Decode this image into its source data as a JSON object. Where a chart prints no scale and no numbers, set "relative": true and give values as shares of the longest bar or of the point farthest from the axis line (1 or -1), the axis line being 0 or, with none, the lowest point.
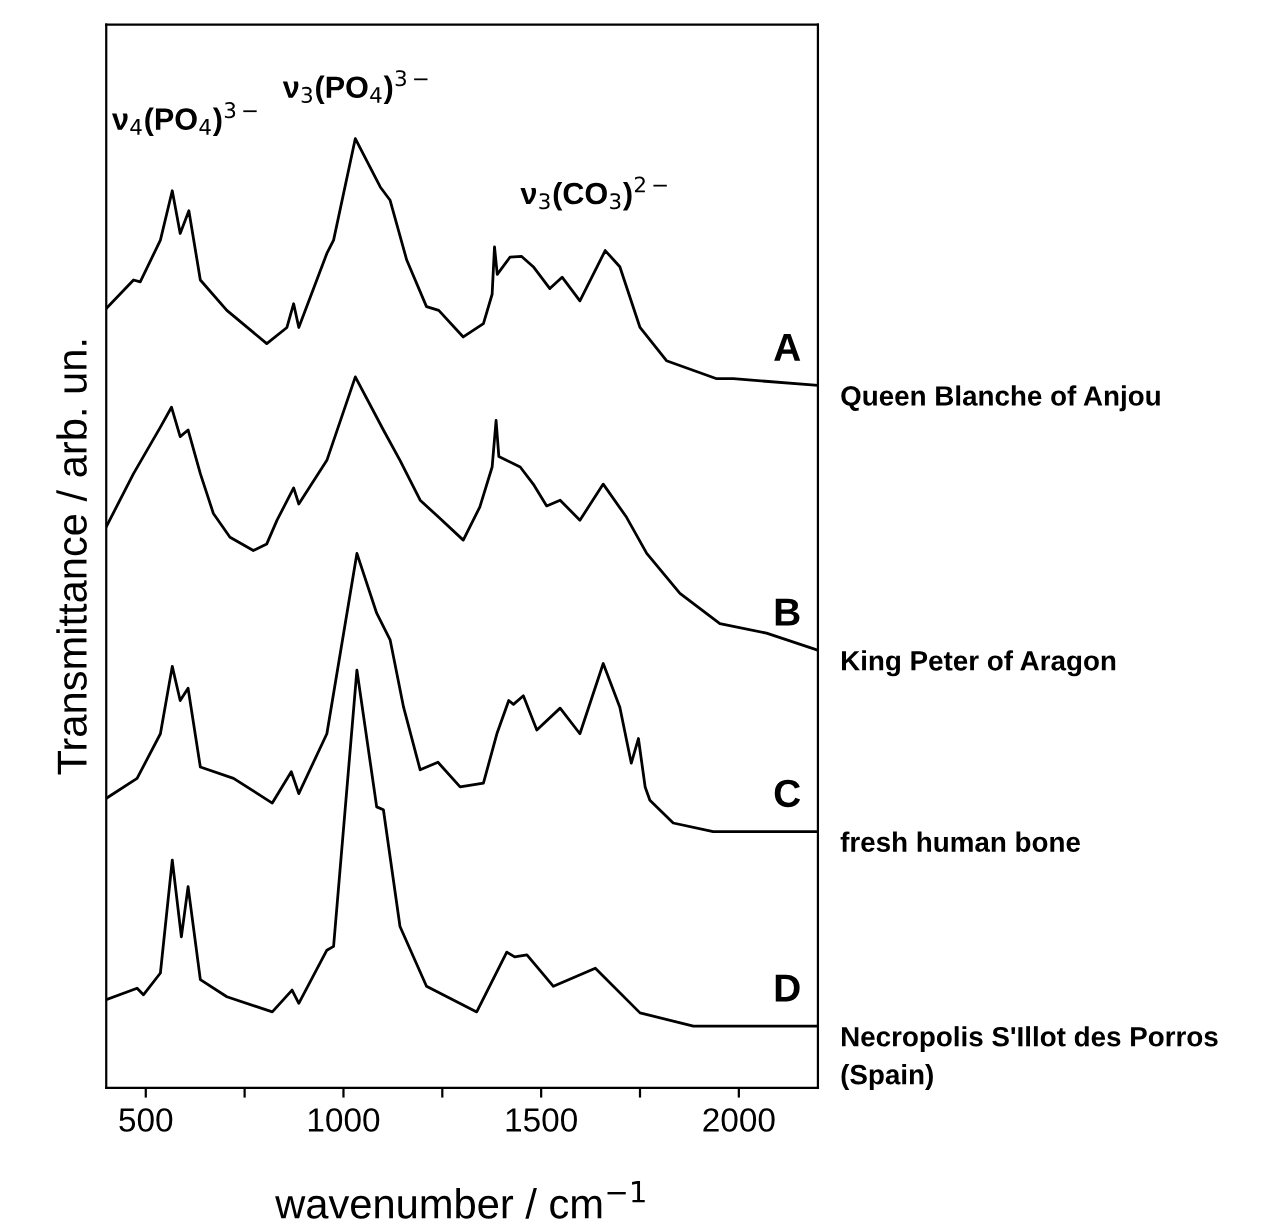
{
  "chart_data": {
    "type": "line",
    "relative": true,
    "xlabel": "wavenumber / cm$^{−1}$",
    "ylabel": "Transmittance / arb. un.",
    "xlim": [
      400,
      2200
    ],
    "xticks": [
      500,
      {
        "value": 750,
        "label": null
      },
      1000,
      {
        "value": 1250,
        "label": null
      },
      1500,
      {
        "value": 1750,
        "label": null
      },
      2000
    ],
    "tick_labels": "x",
    "grid": false,
    "legend": false,
    "series": [
      {
        "name": "A",
        "color": "#000000",
        "x": [
          400,
          469,
          486,
          537,
          567,
          587,
          609,
          638,
          705,
          806,
          857,
          874,
          887,
          958,
          975,
          1030,
          1093,
          1118,
          1160,
          1210,
          1241,
          1303,
          1354,
          1376,
          1382,
          1389,
          1421,
          1450,
          1480,
          1522,
          1553,
          1598,
          1662,
          1699,
          1750,
          1817,
          1944,
          1986,
          2200
        ],
        "values": [
          0.821,
          0.851,
          0.849,
          0.893,
          0.945,
          0.9,
          0.924,
          0.851,
          0.819,
          0.784,
          0.801,
          0.826,
          0.801,
          0.879,
          0.893,
          1.0,
          0.949,
          0.935,
          0.872,
          0.823,
          0.819,
          0.791,
          0.805,
          0.836,
          0.886,
          0.857,
          0.875,
          0.876,
          0.865,
          0.842,
          0.854,
          0.829,
          0.882,
          0.865,
          0.801,
          0.766,
          0.747,
          0.747,
          0.74
        ]
      },
      {
        "name": "B",
        "color": "#000000",
        "x": [
          400,
          469,
          537,
          565,
          587,
          607,
          638,
          671,
          713,
          772,
          806,
          832,
          874,
          887,
          958,
          1030,
          1101,
          1143,
          1194,
          1241,
          1303,
          1345,
          1376,
          1386,
          1393,
          1447,
          1480,
          1514,
          1548,
          1598,
          1657,
          1716,
          1767,
          1851,
          1952,
          2070,
          2200
        ],
        "values": [
          0.591,
          0.647,
          0.696,
          0.717,
          0.686,
          0.693,
          0.647,
          0.605,
          0.58,
          0.566,
          0.573,
          0.598,
          0.632,
          0.615,
          0.661,
          0.749,
          0.693,
          0.661,
          0.619,
          0.601,
          0.577,
          0.612,
          0.654,
          0.703,
          0.665,
          0.654,
          0.636,
          0.613,
          0.619,
          0.598,
          0.636,
          0.601,
          0.563,
          0.521,
          0.489,
          0.479,
          0.461
        ]
      },
      {
        "name": "C",
        "color": "#000000",
        "x": [
          400,
          478,
          537,
          567,
          587,
          607,
          638,
          722,
          820,
          868,
          887,
          958,
          1034,
          1084,
          1118,
          1152,
          1194,
          1239,
          1295,
          1354,
          1388,
          1418,
          1430,
          1455,
          1489,
          1548,
          1598,
          1657,
          1699,
          1728,
          1746,
          1763,
          1775,
          1834,
          1935,
          2200
        ],
        "values": [
          0.305,
          0.326,
          0.373,
          0.444,
          0.408,
          0.421,
          0.338,
          0.326,
          0.3,
          0.333,
          0.31,
          0.373,
          0.563,
          0.5,
          0.472,
          0.401,
          0.335,
          0.343,
          0.317,
          0.321,
          0.373,
          0.408,
          0.404,
          0.413,
          0.377,
          0.4,
          0.373,
          0.447,
          0.401,
          0.342,
          0.368,
          0.317,
          0.303,
          0.279,
          0.27,
          0.27
        ]
      },
      {
        "name": "D",
        "color": "#000000",
        "x": [
          400,
          478,
          494,
          537,
          567,
          590,
          607,
          638,
          705,
          820,
          870,
          887,
          958,
          975,
          1034,
          1084,
          1101,
          1143,
          1210,
          1337,
          1413,
          1433,
          1464,
          1531,
          1637,
          1750,
          1885,
          2200
        ],
        "values": [
          0.093,
          0.105,
          0.098,
          0.121,
          0.24,
          0.159,
          0.212,
          0.114,
          0.096,
          0.08,
          0.103,
          0.089,
          0.145,
          0.149,
          0.44,
          0.296,
          0.293,
          0.17,
          0.107,
          0.08,
          0.143,
          0.138,
          0.14,
          0.107,
          0.126,
          0.079,
          0.065,
          0.065
        ]
      }
    ],
    "annotations": [
      "ν$_{4}$(PO$_{4}$)$^{3−}$",
      "ν$_{3}$(PO$_{4}$)$^{3−}$",
      "ν$_{3}$(CO$_{3}$)$^{2−}$",
      "Queen Blanche of Anjou",
      "King Peter of Aragon",
      "fresh human bone",
      "Necropolis S'Illot des Porros\n(Spain)"
    ]
  }
}
